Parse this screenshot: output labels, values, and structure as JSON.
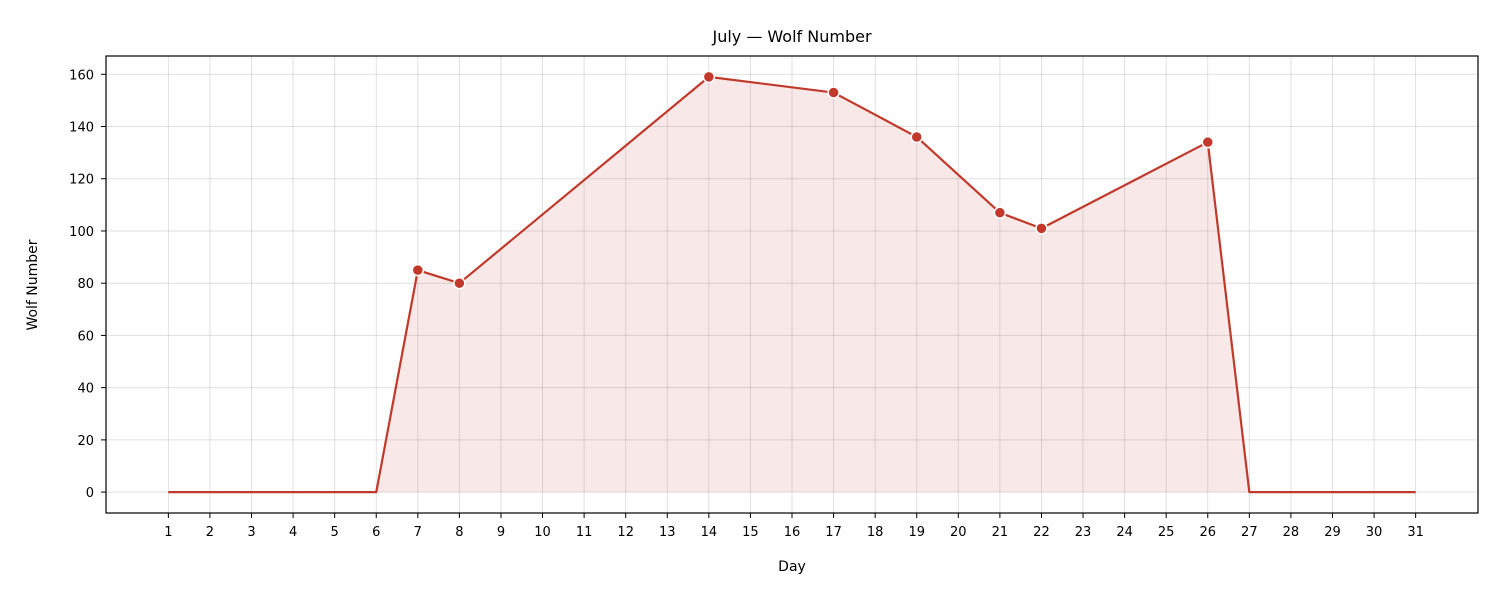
{
  "chart_data": {
    "type": "line",
    "title": "July — Wolf Number",
    "xlabel": "Day",
    "ylabel": "Wolf Number",
    "x_ticks": [
      1,
      2,
      3,
      4,
      5,
      6,
      7,
      8,
      9,
      10,
      11,
      12,
      13,
      14,
      15,
      16,
      17,
      18,
      19,
      20,
      21,
      22,
      23,
      24,
      25,
      26,
      27,
      28,
      29,
      30,
      31
    ],
    "y_ticks": [
      0,
      20,
      40,
      60,
      80,
      100,
      120,
      140,
      160
    ],
    "xlim": [
      -0.5,
      32.5
    ],
    "ylim": [
      -8,
      167
    ],
    "grid": true,
    "series": [
      {
        "color": "#c0392b",
        "fill_color": "#c0392b",
        "points": [
          {
            "x": 1,
            "y": 0
          },
          {
            "x": 6,
            "y": 0
          },
          {
            "x": 7,
            "y": 85,
            "marker": true
          },
          {
            "x": 8,
            "y": 80,
            "marker": true
          },
          {
            "x": 14,
            "y": 159,
            "marker": true
          },
          {
            "x": 17,
            "y": 153,
            "marker": true
          },
          {
            "x": 19,
            "y": 136,
            "marker": true
          },
          {
            "x": 21,
            "y": 107,
            "marker": true
          },
          {
            "x": 22,
            "y": 101,
            "marker": true
          },
          {
            "x": 26,
            "y": 134,
            "marker": true
          },
          {
            "x": 27,
            "y": 0
          },
          {
            "x": 31,
            "y": 0
          }
        ]
      }
    ]
  }
}
